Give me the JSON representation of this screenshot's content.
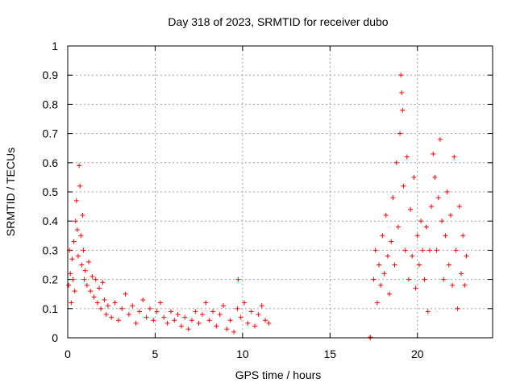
{
  "chart_data": {
    "type": "scatter",
    "title": "Day 318 of 2023, SRMTID for receiver dubo",
    "xlabel": "GPS time / hours",
    "ylabel": "SRMTID / TECUs",
    "xlim": [
      0,
      24.3
    ],
    "ylim": [
      0,
      1
    ],
    "xticks": [
      0,
      5,
      10,
      15,
      20
    ],
    "xtick_labels": [
      "0",
      "5",
      "10",
      "15",
      "20"
    ],
    "yticks": [
      0,
      0.1,
      0.2,
      0.3,
      0.4,
      0.5,
      0.6,
      0.7,
      0.8,
      0.9,
      1
    ],
    "ytick_labels": [
      "0",
      "0.1",
      "0.2",
      "0.3",
      "0.4",
      "0.5",
      "0.6",
      "0.7",
      "0.8",
      "0.9",
      "1"
    ],
    "grid": true,
    "marker": "+",
    "color": "#ff0000",
    "series": [
      {
        "name": "SRMTID",
        "points": [
          [
            0.05,
            0.18
          ],
          [
            0.1,
            0.3
          ],
          [
            0.15,
            0.22
          ],
          [
            0.2,
            0.12
          ],
          [
            0.25,
            0.27
          ],
          [
            0.3,
            0.2
          ],
          [
            0.35,
            0.33
          ],
          [
            0.4,
            0.16
          ],
          [
            0.45,
            0.4
          ],
          [
            0.5,
            0.47
          ],
          [
            0.55,
            0.37
          ],
          [
            0.6,
            0.28
          ],
          [
            0.65,
            0.59
          ],
          [
            0.7,
            0.52
          ],
          [
            0.75,
            0.35
          ],
          [
            0.8,
            0.25
          ],
          [
            0.85,
            0.42
          ],
          [
            0.9,
            0.3
          ],
          [
            0.95,
            0.2
          ],
          [
            1.0,
            0.23
          ],
          [
            1.1,
            0.18
          ],
          [
            1.2,
            0.26
          ],
          [
            1.3,
            0.16
          ],
          [
            1.4,
            0.21
          ],
          [
            1.5,
            0.14
          ],
          [
            1.6,
            0.2
          ],
          [
            1.7,
            0.12
          ],
          [
            1.8,
            0.17
          ],
          [
            1.9,
            0.1
          ],
          [
            2.0,
            0.19
          ],
          [
            2.1,
            0.13
          ],
          [
            2.2,
            0.08
          ],
          [
            2.3,
            0.11
          ],
          [
            2.5,
            0.07
          ],
          [
            2.7,
            0.12
          ],
          [
            2.9,
            0.06
          ],
          [
            3.1,
            0.1
          ],
          [
            3.3,
            0.15
          ],
          [
            3.5,
            0.08
          ],
          [
            3.7,
            0.11
          ],
          [
            3.9,
            0.05
          ],
          [
            4.1,
            0.09
          ],
          [
            4.3,
            0.13
          ],
          [
            4.5,
            0.07
          ],
          [
            4.7,
            0.1
          ],
          [
            4.9,
            0.06
          ],
          [
            5.1,
            0.09
          ],
          [
            5.3,
            0.12
          ],
          [
            5.5,
            0.07
          ],
          [
            5.7,
            0.05
          ],
          [
            5.9,
            0.09
          ],
          [
            6.1,
            0.06
          ],
          [
            6.3,
            0.08
          ],
          [
            6.5,
            0.04
          ],
          [
            6.7,
            0.07
          ],
          [
            6.9,
            0.03
          ],
          [
            7.1,
            0.06
          ],
          [
            7.3,
            0.09
          ],
          [
            7.5,
            0.05
          ],
          [
            7.7,
            0.08
          ],
          [
            7.9,
            0.12
          ],
          [
            8.1,
            0.06
          ],
          [
            8.3,
            0.09
          ],
          [
            8.5,
            0.04
          ],
          [
            8.7,
            0.08
          ],
          [
            8.9,
            0.11
          ],
          [
            9.1,
            0.03
          ],
          [
            9.3,
            0.06
          ],
          [
            9.5,
            0.02
          ],
          [
            9.7,
            0.1
          ],
          [
            9.75,
            0.2
          ],
          [
            9.9,
            0.07
          ],
          [
            10.1,
            0.12
          ],
          [
            10.3,
            0.05
          ],
          [
            10.5,
            0.09
          ],
          [
            10.7,
            0.04
          ],
          [
            10.9,
            0.08
          ],
          [
            11.1,
            0.11
          ],
          [
            11.3,
            0.06
          ],
          [
            11.5,
            0.05
          ],
          [
            17.3,
            0.0
          ],
          [
            17.3,
            0.002
          ],
          [
            17.5,
            0.2
          ],
          [
            17.6,
            0.3
          ],
          [
            17.7,
            0.12
          ],
          [
            17.8,
            0.25
          ],
          [
            17.9,
            0.18
          ],
          [
            18.0,
            0.35
          ],
          [
            18.1,
            0.22
          ],
          [
            18.2,
            0.42
          ],
          [
            18.3,
            0.28
          ],
          [
            18.4,
            0.15
          ],
          [
            18.5,
            0.33
          ],
          [
            18.6,
            0.48
          ],
          [
            18.7,
            0.25
          ],
          [
            18.8,
            0.6
          ],
          [
            18.9,
            0.38
          ],
          [
            19.0,
            0.7
          ],
          [
            19.05,
            0.9
          ],
          [
            19.1,
            0.84
          ],
          [
            19.15,
            0.78
          ],
          [
            19.2,
            0.52
          ],
          [
            19.3,
            0.3
          ],
          [
            19.4,
            0.62
          ],
          [
            19.5,
            0.2
          ],
          [
            19.6,
            0.44
          ],
          [
            19.7,
            0.28
          ],
          [
            19.8,
            0.55
          ],
          [
            19.9,
            0.17
          ],
          [
            20.0,
            0.35
          ],
          [
            20.1,
            0.25
          ],
          [
            20.2,
            0.4
          ],
          [
            20.3,
            0.3
          ],
          [
            20.4,
            0.2
          ],
          [
            20.5,
            0.38
          ],
          [
            20.6,
            0.09
          ],
          [
            20.7,
            0.3
          ],
          [
            20.8,
            0.45
          ],
          [
            20.9,
            0.63
          ],
          [
            21.0,
            0.55
          ],
          [
            21.1,
            0.3
          ],
          [
            21.2,
            0.48
          ],
          [
            21.3,
            0.68
          ],
          [
            21.4,
            0.4
          ],
          [
            21.5,
            0.2
          ],
          [
            21.6,
            0.35
          ],
          [
            21.7,
            0.5
          ],
          [
            21.8,
            0.25
          ],
          [
            21.9,
            0.42
          ],
          [
            22.0,
            0.18
          ],
          [
            22.1,
            0.62
          ],
          [
            22.2,
            0.3
          ],
          [
            22.3,
            0.1
          ],
          [
            22.4,
            0.45
          ],
          [
            22.5,
            0.22
          ],
          [
            22.6,
            0.35
          ],
          [
            22.7,
            0.18
          ],
          [
            22.8,
            0.28
          ]
        ]
      }
    ]
  }
}
